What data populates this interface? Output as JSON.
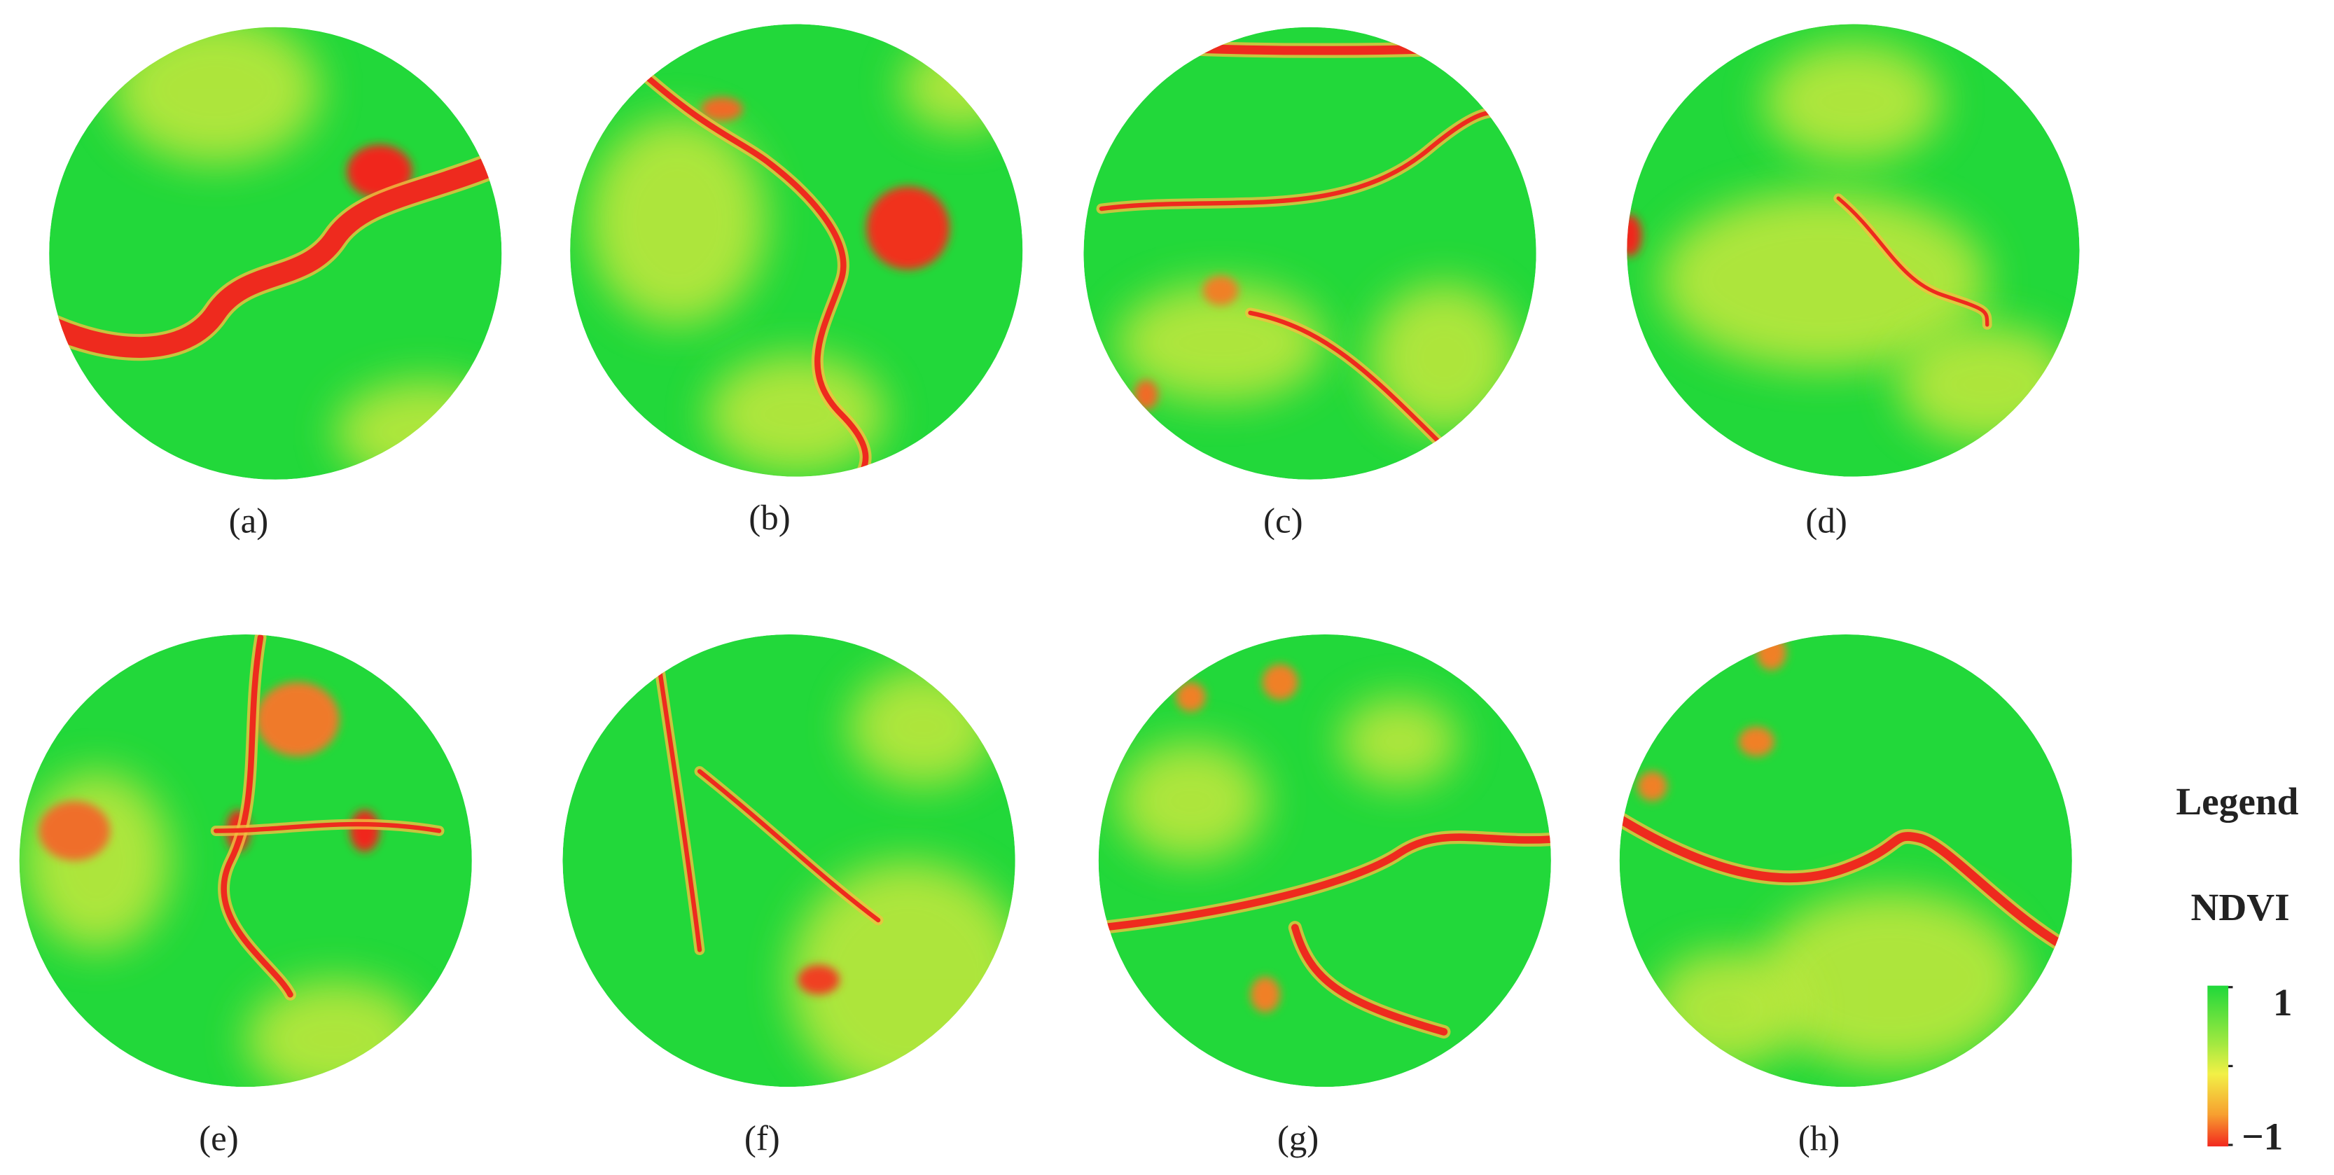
{
  "panels": [
    {
      "label": "(a)"
    },
    {
      "label": "(b)"
    },
    {
      "label": "(c)"
    },
    {
      "label": "(d)"
    },
    {
      "label": "(e)"
    },
    {
      "label": "(f)"
    },
    {
      "label": "(g)"
    },
    {
      "label": "(h)"
    }
  ],
  "legend": {
    "title": "Legend",
    "label": "NDVI",
    "max": "1",
    "min": "−1"
  }
}
